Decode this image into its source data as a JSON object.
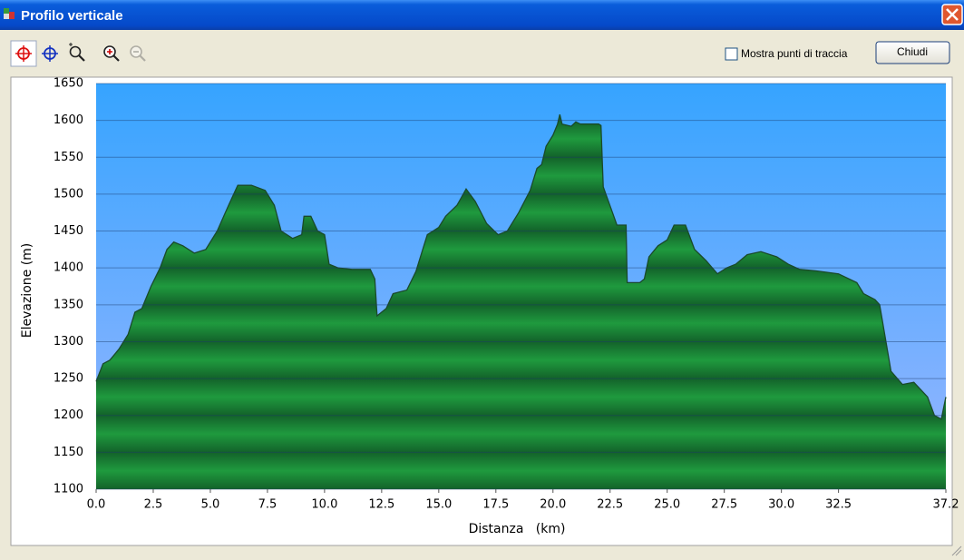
{
  "window": {
    "title": "Profilo verticale",
    "checkbox_label": "Mostra punti di traccia",
    "button": "Chiudi"
  },
  "chart_data": {
    "type": "area",
    "xlabel": "Distanza   (km)",
    "ylabel": "Elevazione (m)",
    "color": "#1f9a3e",
    "grid": true,
    "x": [
      0.0,
      0.3,
      0.6,
      1.0,
      1.4,
      1.7,
      2.0,
      2.4,
      2.8,
      3.1,
      3.4,
      3.8,
      4.3,
      4.8,
      5.3,
      5.8,
      6.2,
      6.8,
      7.4,
      7.8,
      8.1,
      8.6,
      9.0,
      9.1,
      9.4,
      9.7,
      10.0,
      10.2,
      10.6,
      11.2,
      12.0,
      12.2,
      12.3,
      12.7,
      13.0,
      13.6,
      14.0,
      14.5,
      15.0,
      15.3,
      15.8,
      16.2,
      16.6,
      17.1,
      17.6,
      18.0,
      18.5,
      19.0,
      19.3,
      19.5,
      19.7,
      20.0,
      20.2,
      20.3,
      20.4,
      20.8,
      21.0,
      21.2,
      22.0,
      22.1,
      22.2,
      22.8,
      23.2,
      23.25,
      23.8,
      24.0,
      24.2,
      24.6,
      25.0,
      25.3,
      25.8,
      26.2,
      26.7,
      27.2,
      27.6,
      28.0,
      28.5,
      29.1,
      29.8,
      30.3,
      30.8,
      31.5,
      32.5,
      33.3,
      33.6,
      34.1,
      34.3,
      34.8,
      35.3,
      35.8,
      36.1,
      36.4,
      36.7,
      37.0,
      37.2
    ],
    "values": [
      1246,
      1270,
      1275,
      1290,
      1310,
      1340,
      1345,
      1375,
      1400,
      1425,
      1435,
      1430,
      1420,
      1425,
      1450,
      1485,
      1512,
      1512,
      1505,
      1485,
      1450,
      1440,
      1445,
      1470,
      1470,
      1450,
      1445,
      1405,
      1400,
      1398,
      1398,
      1385,
      1335,
      1345,
      1365,
      1370,
      1395,
      1445,
      1455,
      1470,
      1485,
      1507,
      1490,
      1460,
      1445,
      1450,
      1475,
      1505,
      1535,
      1540,
      1565,
      1580,
      1595,
      1608,
      1595,
      1592,
      1598,
      1595,
      1595,
      1593,
      1510,
      1458,
      1458,
      1380,
      1380,
      1385,
      1415,
      1430,
      1438,
      1458,
      1458,
      1425,
      1410,
      1392,
      1400,
      1405,
      1418,
      1422,
      1415,
      1405,
      1398,
      1396,
      1392,
      1380,
      1365,
      1357,
      1350,
      1260,
      1242,
      1245,
      1235,
      1225,
      1200,
      1195,
      1225
    ],
    "xlim": [
      0,
      37.2
    ],
    "ylim": [
      1100,
      1650
    ],
    "xticks": [
      {
        "value": 0,
        "label": "0.0"
      },
      2.5,
      {
        "value": 5,
        "label": "5.0"
      },
      7.5,
      {
        "value": 10,
        "label": "10.0"
      },
      12.5,
      {
        "value": 15,
        "label": "15.0"
      },
      17.5,
      {
        "value": 20,
        "label": "20.0"
      },
      22.5,
      {
        "value": 25,
        "label": "25.0"
      },
      27.5,
      {
        "value": 30,
        "label": "30.0"
      },
      32.5,
      37.2
    ],
    "yticks": [
      1100,
      1150,
      1200,
      1250,
      1300,
      1350,
      1400,
      1450,
      1500,
      1550,
      1600,
      1650
    ]
  }
}
